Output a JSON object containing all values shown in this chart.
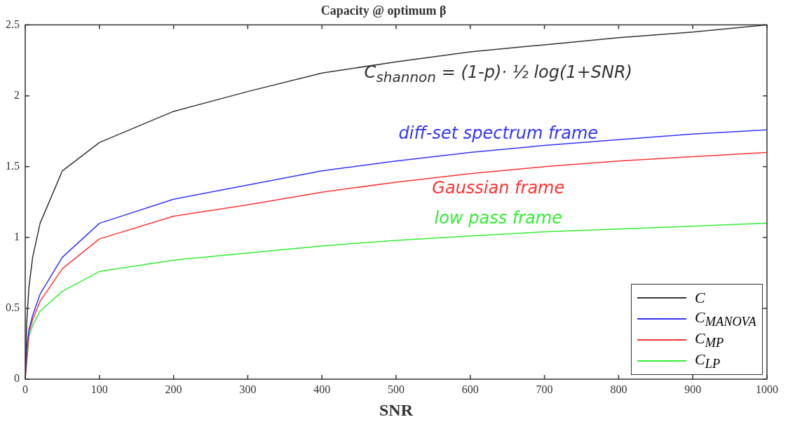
{
  "chart_data": {
    "type": "line",
    "title": "Capacity @ optimum β",
    "xlabel": "SNR",
    "x": [
      0,
      2,
      5,
      10,
      20,
      50,
      100,
      200,
      300,
      400,
      500,
      600,
      700,
      800,
      900,
      1000
    ],
    "series": [
      {
        "name": "C",
        "color": "#333333",
        "values": [
          0,
          0.4,
          0.65,
          0.86,
          1.1,
          1.47,
          1.67,
          1.89,
          2.03,
          2.16,
          2.24,
          2.31,
          2.36,
          2.41,
          2.45,
          2.5
        ]
      },
      {
        "name": "C$_{MANOVA}$",
        "color": "#3333ff",
        "values": [
          0,
          0.22,
          0.35,
          0.45,
          0.6,
          0.86,
          1.1,
          1.27,
          1.37,
          1.47,
          1.54,
          1.6,
          1.65,
          1.69,
          1.73,
          1.76
        ]
      },
      {
        "name": "C$_{MP}$",
        "color": "#ff3333",
        "values": [
          0,
          null,
          0.33,
          0.42,
          0.55,
          0.78,
          0.99,
          1.15,
          1.23,
          1.32,
          1.39,
          1.45,
          1.5,
          1.54,
          1.57,
          1.6
        ]
      },
      {
        "name": "C$_{LP}$",
        "color": "#33ee33",
        "values": [
          0,
          null,
          0.3,
          0.38,
          0.48,
          0.62,
          0.76,
          0.84,
          0.89,
          0.94,
          0.98,
          1.01,
          1.04,
          1.06,
          1.08,
          1.1
        ]
      }
    ],
    "annotations": [
      "C$_{shannon}$ = (1-p)· ½ log(1+SNR)",
      "diff-set spectrum frame",
      "Gaussian frame",
      "low pass frame"
    ],
    "xlim": [
      0,
      1000
    ],
    "xticks": [
      0,
      100,
      200,
      300,
      400,
      500,
      600,
      700,
      800,
      900,
      1000
    ],
    "ylim": [
      0,
      2.5
    ],
    "yticks": [
      0,
      0.5,
      1,
      1.5,
      2,
      2.5
    ],
    "grid": false,
    "legend": "bottom right",
    "marker": "none",
    "line_style": "solid"
  }
}
